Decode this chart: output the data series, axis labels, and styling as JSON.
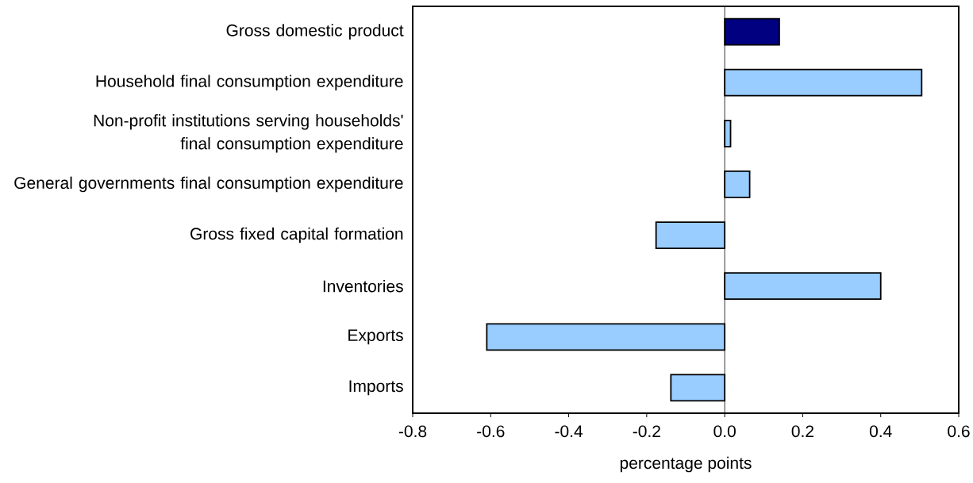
{
  "chart_data": {
    "type": "bar",
    "orientation": "horizontal",
    "xlabel": "percentage points",
    "categories": [
      "Gross domestic product",
      "Household final consumption expenditure",
      "Non-profit institutions serving households' final consumption expenditure",
      "General governments final consumption expenditure",
      "Gross fixed capital formation",
      "Inventories",
      "Exports",
      "Imports"
    ],
    "values": [
      0.14,
      0.505,
      0.015,
      0.064,
      -0.176,
      0.4,
      -0.61,
      -0.138
    ],
    "colors": [
      "#000080",
      "#99ccff",
      "#99ccff",
      "#99ccff",
      "#99ccff",
      "#99ccff",
      "#99ccff",
      "#99ccff"
    ],
    "xlim": [
      -0.8,
      0.6
    ],
    "xticks": [
      {
        "value": -0.8,
        "label": "-0.8"
      },
      {
        "value": -0.6,
        "label": "-0.6"
      },
      {
        "value": -0.4,
        "label": "-0.4"
      },
      {
        "value": -0.2,
        "label": "-0.2"
      },
      {
        "value": 0,
        "label": "0.0"
      },
      {
        "value": 0.2,
        "label": "0.2"
      },
      {
        "value": 0.4,
        "label": "0.4"
      },
      {
        "value": 0.6,
        "label": "0.6"
      }
    ],
    "ref_lines": [
      {
        "axis": "x",
        "value": 0
      }
    ]
  }
}
